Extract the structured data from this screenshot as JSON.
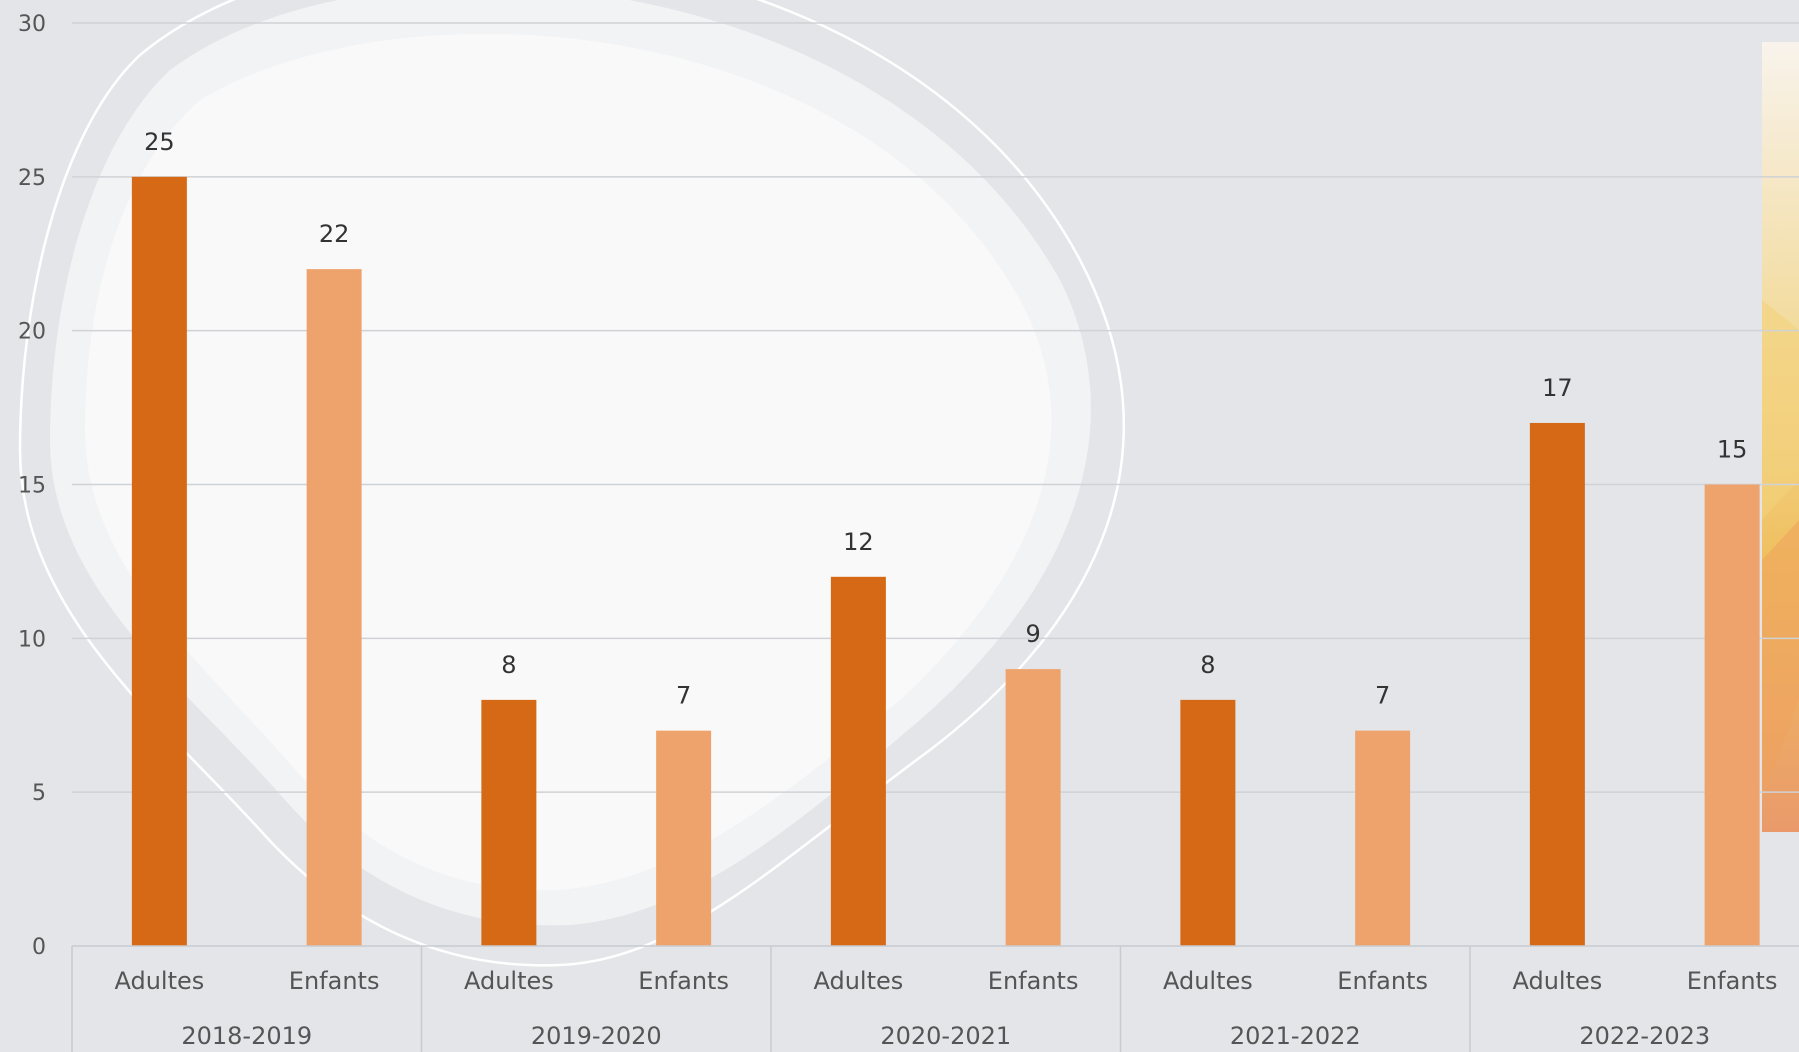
{
  "chart_data": {
    "type": "bar",
    "groups": [
      "2018-2019",
      "2019-2020",
      "2020-2021",
      "2021-2022",
      "2022-2023"
    ],
    "subcategories": [
      "Adultes",
      "Enfants"
    ],
    "series": [
      {
        "values": [
          25,
          8,
          12,
          8,
          17
        ],
        "color": "#d56916"
      },
      {
        "values": [
          22,
          7,
          9,
          7,
          15
        ],
        "color": "#efa36c"
      }
    ],
    "yticks": [
      "0",
      "5",
      "10",
      "15",
      "20",
      "25",
      "30"
    ],
    "ylim": [
      0,
      30
    ],
    "grid": true,
    "title": "",
    "xlabel": "",
    "ylabel": ""
  }
}
